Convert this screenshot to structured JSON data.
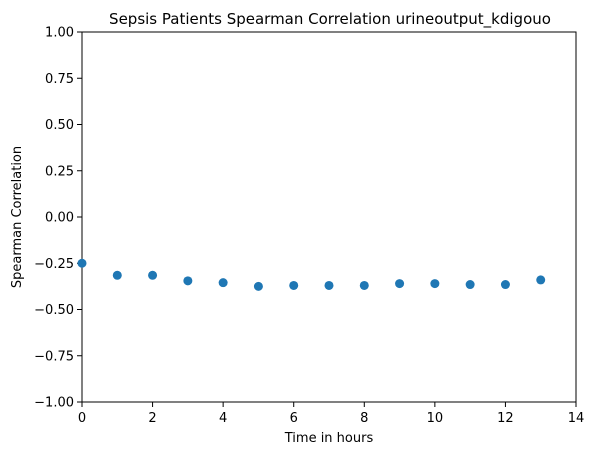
{
  "chart_data": {
    "type": "scatter",
    "title": "Sepsis Patients Spearman Correlation urineoutput_kdigouo",
    "xlabel": "Time in hours",
    "ylabel": "Spearman Correlation",
    "xlim": [
      0,
      14
    ],
    "ylim": [
      -1.0,
      1.0
    ],
    "xticks": [
      "0",
      "2",
      "4",
      "6",
      "8",
      "10",
      "12",
      "14"
    ],
    "yticks": [
      "−1.00",
      "−0.75",
      "−0.50",
      "−0.25",
      "0.00",
      "0.25",
      "0.50",
      "0.75",
      "1.00"
    ],
    "grid": false,
    "marker_color": "#1f77b4",
    "x": [
      0,
      1,
      2,
      3,
      4,
      5,
      6,
      7,
      8,
      9,
      10,
      11,
      12,
      13
    ],
    "y": [
      -0.25,
      -0.315,
      -0.315,
      -0.345,
      -0.355,
      -0.375,
      -0.37,
      -0.37,
      -0.37,
      -0.36,
      -0.36,
      -0.365,
      -0.365,
      -0.34
    ]
  }
}
